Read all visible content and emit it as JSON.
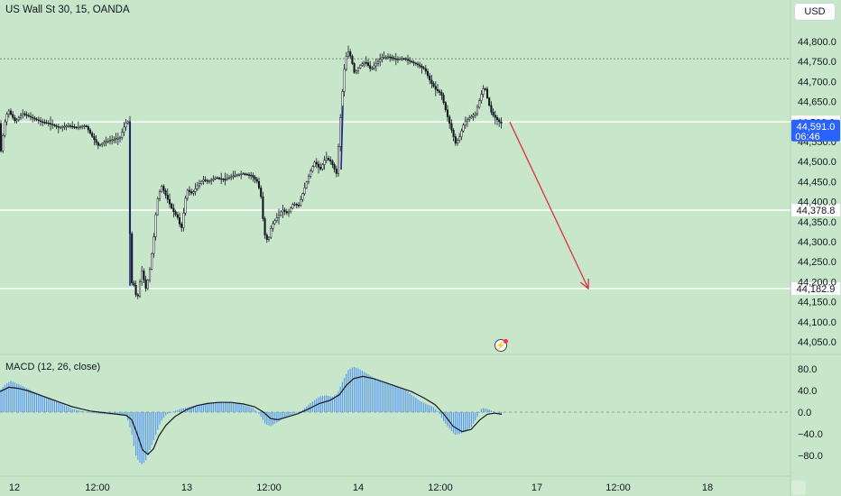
{
  "header": {
    "symbol_title": "US Wall St 30, 15, OANDA",
    "currency_button": "USD"
  },
  "macd": {
    "title": "MACD (12, 26, close)"
  },
  "colors": {
    "background": "#c8e6c9",
    "up_candle": "#131722",
    "down_candle": "#131722",
    "wick_accent": "#1e2a8a",
    "hline": "#ffffff",
    "arrow": "#e02f3f",
    "macd_hist": "#5b9cf6",
    "macd_line": "#131722",
    "price_badge": "#2962ff"
  },
  "chart_data": [
    {
      "type": "candlestick",
      "title": "US Wall St 30, 15, OANDA",
      "y_axis_labels": [
        "44,800.0",
        "44,750.0",
        "44,700.0",
        "44,650.0",
        "44,550.0",
        "44,500.0",
        "44,450.0",
        "44,400.0",
        "44,350.0",
        "44,300.0",
        "44,250.0",
        "44,200.0",
        "44,150.0",
        "44,100.0",
        "44,050.0"
      ],
      "x_axis_labels": [
        "12",
        "12:00",
        "13",
        "12:00",
        "14",
        "12:00",
        "17",
        "12:00",
        "18"
      ],
      "ylim": [
        44020,
        44830
      ],
      "horizontal_levels": [
        {
          "value": 44598.9,
          "label": "44,598.9"
        },
        {
          "value": 44378.8,
          "label": "44,378.8"
        },
        {
          "value": 44182.9,
          "label": "44,182.9"
        }
      ],
      "current_price": {
        "value": 44591.0,
        "label": "44,591.0",
        "countdown": "06:46"
      },
      "dashed_level": 44757,
      "path_points": [
        [
          0,
          44490
        ],
        [
          6,
          44595
        ],
        [
          10,
          44630
        ],
        [
          18,
          44600
        ],
        [
          26,
          44620
        ],
        [
          36,
          44610
        ],
        [
          46,
          44600
        ],
        [
          56,
          44595
        ],
        [
          66,
          44585
        ],
        [
          76,
          44590
        ],
        [
          86,
          44585
        ],
        [
          96,
          44590
        ],
        [
          104,
          44560
        ],
        [
          110,
          44540
        ],
        [
          118,
          44550
        ],
        [
          126,
          44555
        ],
        [
          134,
          44560
        ],
        [
          140,
          44595
        ],
        [
          143,
          44600
        ],
        [
          146,
          44200
        ],
        [
          150,
          44190
        ],
        [
          153,
          44150
        ],
        [
          158,
          44230
        ],
        [
          163,
          44180
        ],
        [
          167,
          44230
        ],
        [
          171,
          44300
        ],
        [
          175,
          44400
        ],
        [
          180,
          44440
        ],
        [
          186,
          44410
        ],
        [
          192,
          44380
        ],
        [
          198,
          44360
        ],
        [
          202,
          44330
        ],
        [
          208,
          44430
        ],
        [
          214,
          44420
        ],
        [
          220,
          44440
        ],
        [
          226,
          44455
        ],
        [
          232,
          44450
        ],
        [
          240,
          44460
        ],
        [
          250,
          44455
        ],
        [
          260,
          44465
        ],
        [
          270,
          44470
        ],
        [
          280,
          44465
        ],
        [
          286,
          44450
        ],
        [
          290,
          44420
        ],
        [
          294,
          44320
        ],
        [
          298,
          44300
        ],
        [
          302,
          44340
        ],
        [
          308,
          44360
        ],
        [
          314,
          44380
        ],
        [
          320,
          44370
        ],
        [
          326,
          44395
        ],
        [
          332,
          44390
        ],
        [
          338,
          44430
        ],
        [
          344,
          44470
        ],
        [
          350,
          44500
        ],
        [
          356,
          44480
        ],
        [
          362,
          44510
        ],
        [
          368,
          44500
        ],
        [
          374,
          44470
        ],
        [
          378,
          44600
        ],
        [
          382,
          44720
        ],
        [
          386,
          44780
        ],
        [
          390,
          44760
        ],
        [
          394,
          44720
        ],
        [
          400,
          44740
        ],
        [
          406,
          44750
        ],
        [
          412,
          44730
        ],
        [
          418,
          44745
        ],
        [
          424,
          44760
        ],
        [
          432,
          44762
        ],
        [
          440,
          44755
        ],
        [
          448,
          44758
        ],
        [
          456,
          44750
        ],
        [
          464,
          44742
        ],
        [
          472,
          44730
        ],
        [
          478,
          44700
        ],
        [
          484,
          44680
        ],
        [
          490,
          44670
        ],
        [
          496,
          44620
        ],
        [
          500,
          44590
        ],
        [
          506,
          44545
        ],
        [
          510,
          44560
        ],
        [
          516,
          44600
        ],
        [
          522,
          44610
        ],
        [
          528,
          44620
        ],
        [
          534,
          44665
        ],
        [
          538,
          44690
        ],
        [
          542,
          44650
        ],
        [
          546,
          44620
        ],
        [
          550,
          44610
        ],
        [
          554,
          44600
        ],
        [
          557,
          44595
        ]
      ],
      "projection": {
        "from": [
          565,
          44598.9
        ],
        "to": [
          652,
          44182.9
        ]
      },
      "xlabel": "",
      "ylabel": ""
    },
    {
      "type": "bar+line",
      "title": "MACD (12, 26, close)",
      "y_axis_labels": [
        "80.0",
        "40.0",
        "0.0",
        "−40.0",
        "−80.0"
      ],
      "ylim": [
        -100,
        95
      ],
      "histogram": [
        [
          0,
          40
        ],
        [
          6,
          52
        ],
        [
          12,
          58
        ],
        [
          20,
          52
        ],
        [
          30,
          44
        ],
        [
          40,
          36
        ],
        [
          50,
          28
        ],
        [
          60,
          22
        ],
        [
          70,
          14
        ],
        [
          80,
          6
        ],
        [
          90,
          2
        ],
        [
          100,
          -1
        ],
        [
          110,
          -3
        ],
        [
          120,
          -4
        ],
        [
          130,
          -5
        ],
        [
          140,
          -5
        ],
        [
          146,
          -40
        ],
        [
          150,
          -78
        ],
        [
          154,
          -92
        ],
        [
          158,
          -97
        ],
        [
          162,
          -88
        ],
        [
          166,
          -70
        ],
        [
          172,
          -45
        ],
        [
          178,
          -18
        ],
        [
          184,
          -5
        ],
        [
          190,
          0
        ],
        [
          200,
          6
        ],
        [
          210,
          10
        ],
        [
          220,
          14
        ],
        [
          230,
          16
        ],
        [
          240,
          18
        ],
        [
          250,
          18
        ],
        [
          260,
          17
        ],
        [
          270,
          13
        ],
        [
          280,
          8
        ],
        [
          288,
          -5
        ],
        [
          294,
          -22
        ],
        [
          300,
          -26
        ],
        [
          306,
          -20
        ],
        [
          312,
          -14
        ],
        [
          318,
          -8
        ],
        [
          326,
          -3
        ],
        [
          334,
          2
        ],
        [
          342,
          14
        ],
        [
          350,
          24
        ],
        [
          356,
          30
        ],
        [
          362,
          31
        ],
        [
          368,
          28
        ],
        [
          374,
          34
        ],
        [
          380,
          58
        ],
        [
          386,
          78
        ],
        [
          392,
          84
        ],
        [
          398,
          80
        ],
        [
          406,
          72
        ],
        [
          414,
          64
        ],
        [
          422,
          56
        ],
        [
          430,
          52
        ],
        [
          440,
          46
        ],
        [
          450,
          40
        ],
        [
          458,
          30
        ],
        [
          466,
          20
        ],
        [
          474,
          14
        ],
        [
          480,
          10
        ],
        [
          486,
          0
        ],
        [
          492,
          -18
        ],
        [
          498,
          -30
        ],
        [
          504,
          -42
        ],
        [
          510,
          -40
        ],
        [
          516,
          -36
        ],
        [
          522,
          -28
        ],
        [
          528,
          -12
        ],
        [
          534,
          8
        ],
        [
          540,
          6
        ],
        [
          546,
          2
        ],
        [
          552,
          -2
        ],
        [
          556,
          -4
        ]
      ],
      "signal_line": [
        [
          0,
          38
        ],
        [
          10,
          46
        ],
        [
          20,
          44
        ],
        [
          30,
          40
        ],
        [
          40,
          34
        ],
        [
          50,
          28
        ],
        [
          60,
          22
        ],
        [
          70,
          16
        ],
        [
          80,
          10
        ],
        [
          90,
          6
        ],
        [
          100,
          2
        ],
        [
          110,
          0
        ],
        [
          120,
          -2
        ],
        [
          130,
          -4
        ],
        [
          140,
          -6
        ],
        [
          146,
          -14
        ],
        [
          152,
          -40
        ],
        [
          158,
          -70
        ],
        [
          164,
          -78
        ],
        [
          170,
          -68
        ],
        [
          176,
          -44
        ],
        [
          184,
          -24
        ],
        [
          194,
          -8
        ],
        [
          206,
          4
        ],
        [
          218,
          12
        ],
        [
          230,
          16
        ],
        [
          242,
          18
        ],
        [
          256,
          18
        ],
        [
          270,
          15
        ],
        [
          282,
          10
        ],
        [
          292,
          0
        ],
        [
          300,
          -12
        ],
        [
          308,
          -14
        ],
        [
          318,
          -9
        ],
        [
          330,
          -3
        ],
        [
          342,
          6
        ],
        [
          354,
          16
        ],
        [
          366,
          22
        ],
        [
          376,
          32
        ],
        [
          384,
          50
        ],
        [
          392,
          62
        ],
        [
          402,
          66
        ],
        [
          414,
          62
        ],
        [
          428,
          54
        ],
        [
          442,
          46
        ],
        [
          456,
          38
        ],
        [
          470,
          26
        ],
        [
          482,
          14
        ],
        [
          492,
          -4
        ],
        [
          502,
          -26
        ],
        [
          512,
          -36
        ],
        [
          522,
          -32
        ],
        [
          532,
          -14
        ],
        [
          540,
          -4
        ],
        [
          548,
          -2
        ],
        [
          556,
          -4
        ]
      ]
    }
  ]
}
